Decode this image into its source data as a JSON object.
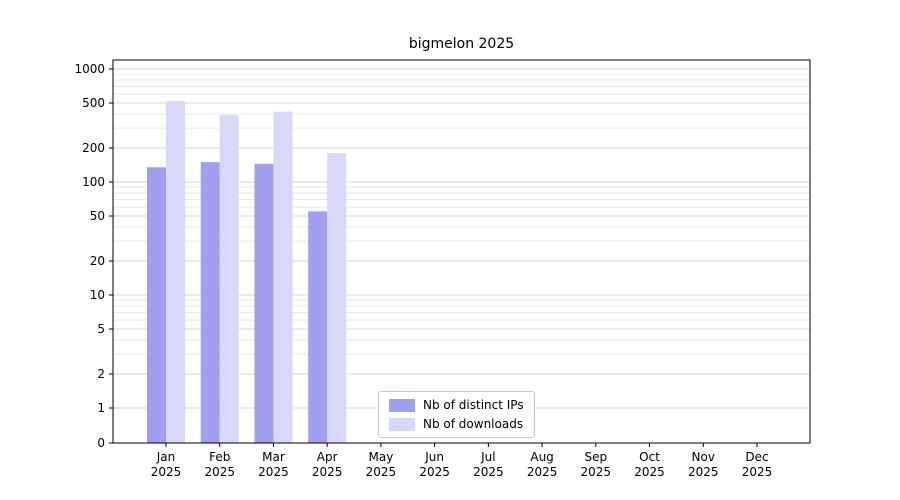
{
  "chart_data": {
    "type": "bar",
    "title": "bigmelon 2025",
    "yscale": "symlog",
    "ylim": [
      0,
      1000
    ],
    "yticks": [
      0,
      1,
      2,
      5,
      10,
      20,
      50,
      100,
      200,
      500,
      1000
    ],
    "grid": "horizontal, log minor gridlines, light gray",
    "legend_position": "lower center inside plot",
    "months": [
      "Jan",
      "Feb",
      "Mar",
      "Apr",
      "May",
      "Jun",
      "Jul",
      "Aug",
      "Sep",
      "Oct",
      "Nov",
      "Dec"
    ],
    "x_tick_year": "2025",
    "categories": [
      "Jan 2025",
      "Feb 2025",
      "Mar 2025",
      "Apr 2025",
      "May 2025",
      "Jun 2025",
      "Jul 2025",
      "Aug 2025",
      "Sep 2025",
      "Oct 2025",
      "Nov 2025",
      "Dec 2025"
    ],
    "series": [
      {
        "name": "Nb of distinct IPs",
        "color": "#a0a0ef",
        "values": [
          135,
          150,
          145,
          55,
          0,
          0,
          0,
          0,
          0,
          0,
          0,
          0
        ]
      },
      {
        "name": "Nb of downloads",
        "color": "#d8d8f8",
        "values": [
          520,
          390,
          420,
          180,
          0,
          0,
          0,
          0,
          0,
          0,
          0,
          0
        ]
      }
    ]
  }
}
